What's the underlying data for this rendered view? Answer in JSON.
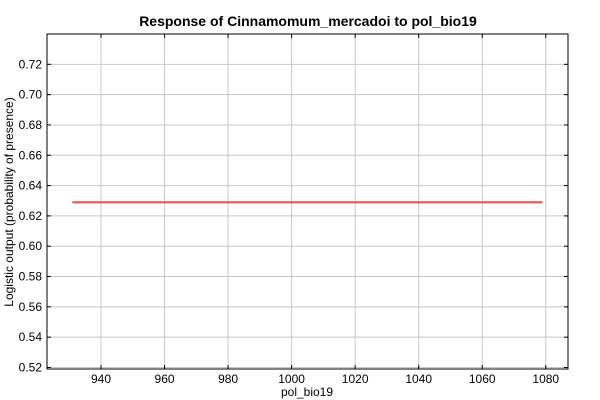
{
  "chart_data": {
    "type": "line",
    "title": "Response of Cinnamomum_mercadoi to pol_bio19",
    "xlabel": "pol_bio19",
    "ylabel": "Logistic output (probability of presence)",
    "xlim": [
      923,
      1087
    ],
    "ylim": [
      0.519,
      0.74
    ],
    "xticks": [
      940,
      960,
      980,
      1000,
      1020,
      1040,
      1060,
      1080
    ],
    "yticks": [
      0.52,
      0.54,
      0.56,
      0.58,
      0.6,
      0.62,
      0.64,
      0.66,
      0.68,
      0.7,
      0.72
    ],
    "ytick_labels": [
      "0.52",
      "0.54",
      "0.56",
      "0.58",
      "0.60",
      "0.62",
      "0.64",
      "0.66",
      "0.68",
      "0.70",
      "0.72"
    ],
    "grid": true,
    "series": [
      {
        "color": "#e35454",
        "x": [
          931,
          1079
        ],
        "y": [
          0.629,
          0.629
        ]
      }
    ]
  }
}
